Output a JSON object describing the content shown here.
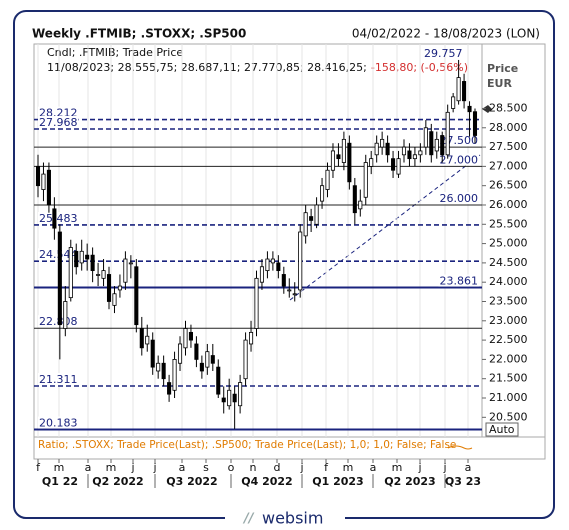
{
  "chart_data": {
    "type": "candlestick",
    "title": "Weekly .FTMIB; .STOXX; .SP500",
    "date_range": "04/02/2022 - 18/08/2023 (LON)",
    "info_header": "Cndl; .FTMIB; Trade Price",
    "info_values": "11/08/2023; 28.555,75; 28.687,11; 27.770,85; 28.416,25;",
    "info_change": "-158,80; (-0,56%)",
    "price_label": "Price",
    "currency": "EUR",
    "auto_button": "Auto",
    "lower_panel_text": "Ratio; .STOXX; Trade Price(Last); .SP500; Trade Price(Last); 1,0; 1,0; False; False",
    "footer": "websim",
    "months": [
      "f",
      "m",
      "a",
      "m",
      "j",
      "j",
      "a",
      "s",
      "o",
      "n",
      "d",
      "j",
      "f",
      "m",
      "a",
      "m",
      "j",
      "j",
      "a"
    ],
    "quarters": [
      "Q1 22",
      "Q2 2022",
      "Q3 2022",
      "Q4 2022",
      "Q1 2023",
      "Q2 2023",
      "Q3 23"
    ],
    "up_color": "#ffffff",
    "down_color": "#000000",
    "ylim": [
      19990,
      30170
    ],
    "yticks": [
      {
        "value": 20500,
        "label": "20.500"
      },
      {
        "value": 21000,
        "label": "21.000"
      },
      {
        "value": 21500,
        "label": "21.500"
      },
      {
        "value": 22000,
        "label": "22.000"
      },
      {
        "value": 22500,
        "label": "22.500"
      },
      {
        "value": 23000,
        "label": "23.000"
      },
      {
        "value": 23500,
        "label": "23.500"
      },
      {
        "value": 24000,
        "label": "24.000"
      },
      {
        "value": 24500,
        "label": "24.500"
      },
      {
        "value": 25000,
        "label": "25.000"
      },
      {
        "value": 25500,
        "label": "25.500"
      },
      {
        "value": 26000,
        "label": "26.000"
      },
      {
        "value": 26500,
        "label": "26.500"
      },
      {
        "value": 27000,
        "label": "27.000"
      },
      {
        "value": 27500,
        "label": "27.500"
      },
      {
        "value": 28000,
        "label": "28.000"
      },
      {
        "value": 28500,
        "label": "28.500"
      }
    ],
    "levels": [
      {
        "value": 29757,
        "label": "29.757",
        "style": "none",
        "label_side": "right"
      },
      {
        "value": 28212,
        "label": "28.212",
        "style": "dashed",
        "label_side": "left"
      },
      {
        "value": 27968,
        "label": "27.968",
        "style": "dashed",
        "label_side": "left"
      },
      {
        "value": 27500,
        "label": "27.500",
        "style": "solid",
        "label_side": "right"
      },
      {
        "value": 27000,
        "label": "27.000",
        "style": "solid",
        "label_side": "right"
      },
      {
        "value": 26000,
        "label": "26.000",
        "style": "solid",
        "label_side": "right"
      },
      {
        "value": 25483,
        "label": "25.483",
        "style": "dashed",
        "label_side": "left"
      },
      {
        "value": 24544,
        "label": "24.544",
        "style": "dashed",
        "label_side": "left"
      },
      {
        "value": 23861,
        "label": "23.861",
        "style": "thick",
        "label_side": "right"
      },
      {
        "value": 22808,
        "label": "22.808",
        "style": "solid",
        "label_side": "left"
      },
      {
        "value": 21311,
        "label": "21.311",
        "style": "dashed",
        "label_side": "left"
      },
      {
        "value": 20183,
        "label": "20.183",
        "style": "thick",
        "label_side": "left"
      }
    ],
    "open": [
      27000,
      26400,
      26900,
      25900,
      25300,
      22800,
      23600,
      24800,
      24500,
      24700,
      24700,
      24200,
      24100,
      24200,
      23400,
      23800,
      24000,
      24500,
      24400,
      22800,
      22400,
      22500,
      21700,
      21900,
      21400,
      21200,
      21900,
      22300,
      22700,
      22400,
      21900,
      21800,
      22100,
      21800,
      21000,
      20800,
      21100,
      20800,
      21500,
      22400,
      22800,
      24000,
      24300,
      24500,
      24500,
      24200,
      23800,
      23700,
      23800,
      25200,
      25700,
      25500,
      26100,
      26400,
      26900,
      27300,
      27100,
      27600,
      26500,
      25900,
      26200,
      27000,
      27300,
      27500,
      27600,
      27200,
      26800,
      27300,
      27400,
      27200,
      27300,
      27500,
      27900,
      27400,
      27800,
      27300,
      28500,
      28700,
      29200,
      28556,
      28416
    ],
    "high": [
      27300,
      27100,
      27100,
      26200,
      25500,
      23900,
      25100,
      25000,
      25100,
      25000,
      24900,
      24500,
      24600,
      24400,
      23900,
      24200,
      24800,
      24700,
      24600,
      23100,
      22900,
      22700,
      22100,
      22100,
      21600,
      22200,
      22600,
      23000,
      22900,
      22600,
      22100,
      22400,
      22400,
      22000,
      21300,
      21500,
      21300,
      21600,
      22700,
      23000,
      24300,
      24600,
      24800,
      24800,
      24700,
      24400,
      24100,
      24000,
      25500,
      26000,
      25900,
      26200,
      26700,
      27100,
      27600,
      27600,
      27900,
      27800,
      26700,
      26400,
      27300,
      27400,
      27800,
      27900,
      27800,
      27400,
      27400,
      27700,
      27600,
      27500,
      27600,
      28200,
      28100,
      27900,
      27900,
      28600,
      28900,
      29757,
      29400,
      28687,
      28500
    ],
    "low": [
      26200,
      26100,
      25800,
      25100,
      22000,
      22600,
      23500,
      24200,
      24300,
      24300,
      24000,
      23900,
      23900,
      23300,
      23200,
      23600,
      23800,
      24100,
      22700,
      22100,
      22200,
      21600,
      21500,
      21300,
      20900,
      21000,
      21700,
      22100,
      22300,
      21800,
      21500,
      21600,
      21700,
      21000,
      20600,
      20700,
      20200,
      20600,
      21300,
      22200,
      22600,
      23800,
      24100,
      24300,
      24100,
      23700,
      23600,
      23500,
      23600,
      25000,
      25300,
      25400,
      25900,
      26200,
      26700,
      27000,
      26900,
      26400,
      25500,
      25700,
      26000,
      26800,
      27100,
      27300,
      27100,
      26700,
      26700,
      27100,
      27000,
      27000,
      27100,
      27300,
      27100,
      27200,
      27100,
      27200,
      28400,
      28600,
      28500,
      27770,
      27600
    ],
    "close": [
      26500,
      26800,
      26000,
      25400,
      22900,
      23500,
      24900,
      24400,
      24800,
      24600,
      24300,
      24200,
      24300,
      23500,
      23700,
      23900,
      24600,
      24500,
      22900,
      22300,
      22600,
      21800,
      21900,
      21500,
      21100,
      22000,
      22400,
      22800,
      22500,
      22000,
      21700,
      22200,
      21900,
      21100,
      20900,
      21200,
      20900,
      21400,
      22500,
      22700,
      24100,
      24400,
      24600,
      24600,
      24300,
      23900,
      23800,
      23700,
      25300,
      25800,
      25600,
      26000,
      26500,
      26900,
      27400,
      27200,
      27700,
      26600,
      25800,
      26100,
      27100,
      27200,
      27600,
      27700,
      27300,
      26900,
      27200,
      27500,
      27200,
      27300,
      27400,
      28000,
      27300,
      27700,
      27300,
      28400,
      28800,
      29300,
      28700,
      28416,
      27800
    ]
  }
}
